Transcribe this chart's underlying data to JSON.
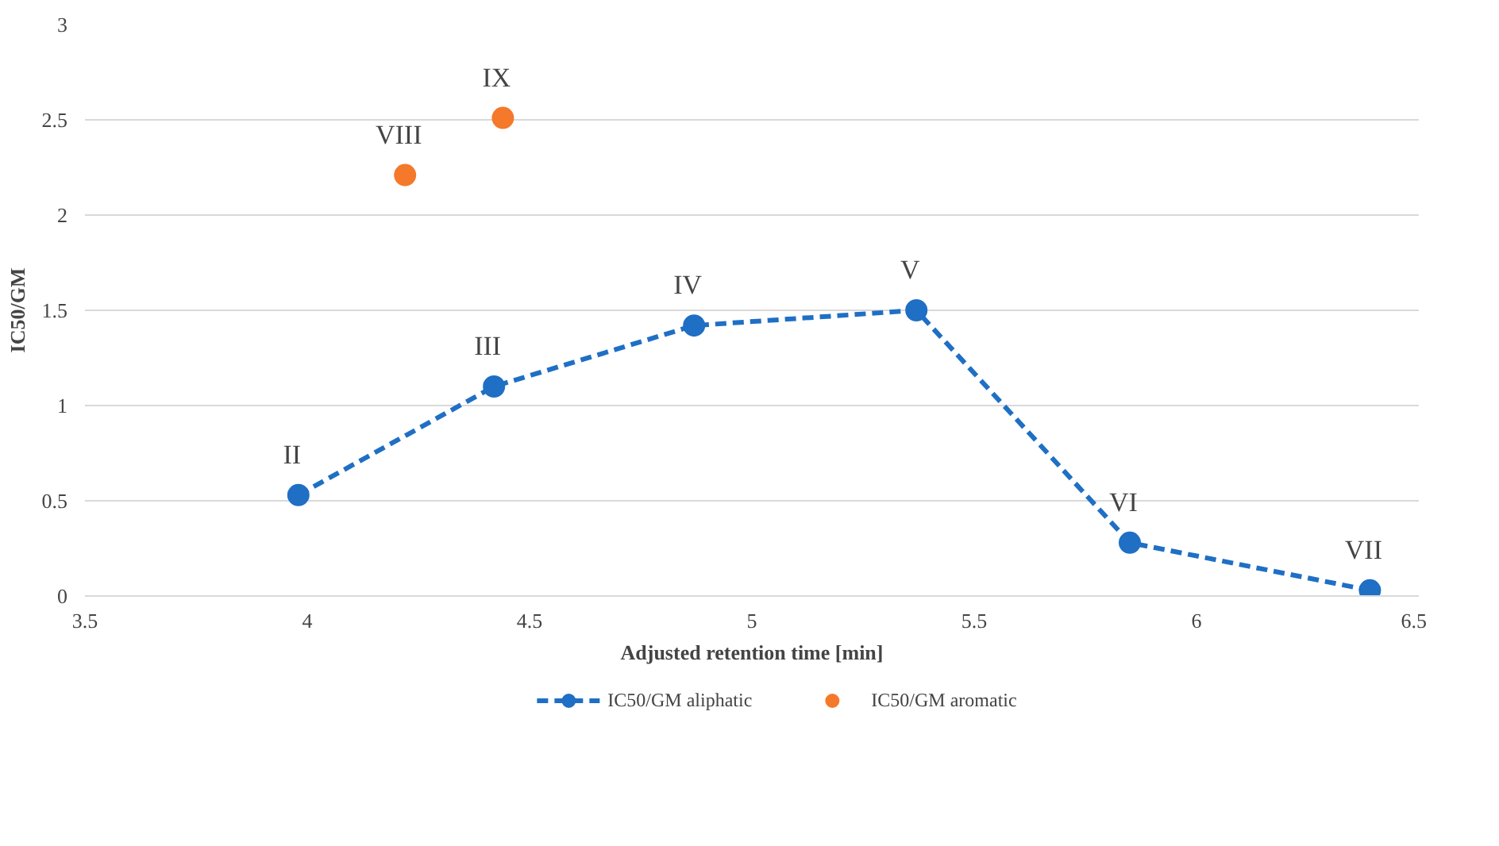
{
  "chart_data": {
    "type": "line",
    "xlabel": "Adjusted retention time [min]",
    "ylabel": "IC50/GM",
    "xlim": [
      3.5,
      6.5
    ],
    "xticks": [
      3.5,
      4,
      4.5,
      5,
      5.5,
      6,
      6.5
    ],
    "ylim": [
      0,
      3
    ],
    "yticks": [
      0,
      0.5,
      1,
      1.5,
      2,
      2.5,
      3
    ],
    "series": [
      {
        "name": "IC50/GM aliphatic",
        "color": "#1f6fc5",
        "line_style": "dashed",
        "marker": "circle",
        "x": [
          3.98,
          4.42,
          4.87,
          5.37,
          5.85,
          6.39
        ],
        "values": [
          0.53,
          1.1,
          1.42,
          1.5,
          0.28,
          0.03
        ]
      },
      {
        "name": "IC50/GM aromatic",
        "type": "scatter",
        "color": "#f5792a",
        "marker": "circle",
        "x": [
          4.22,
          4.44
        ],
        "values": [
          2.21,
          2.51
        ]
      }
    ],
    "annotations": [
      {
        "text": "II",
        "x": 3.98,
        "y": 0.53
      },
      {
        "text": "III",
        "x": 4.42,
        "y": 1.1
      },
      {
        "text": "IV",
        "x": 4.87,
        "y": 1.42
      },
      {
        "text": "V",
        "x": 5.37,
        "y": 1.5
      },
      {
        "text": "VI",
        "x": 5.85,
        "y": 0.28
      },
      {
        "text": "VII",
        "x": 6.39,
        "y": 0.03
      },
      {
        "text": "VIII",
        "x": 4.22,
        "y": 2.21
      },
      {
        "text": "IX",
        "x": 4.44,
        "y": 2.51
      }
    ],
    "grid": "y",
    "legend": "bottom"
  }
}
